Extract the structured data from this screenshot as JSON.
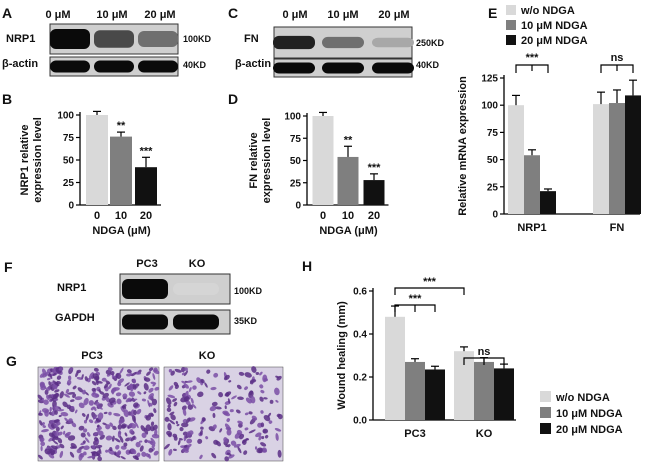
{
  "panels": {
    "A": {
      "letter": "A",
      "conditions": [
        "0 μM",
        "10 μM",
        "20 μM"
      ],
      "rows": [
        {
          "label": "NRP1",
          "size": "100KD",
          "levels": [
            1.0,
            0.72,
            0.55
          ]
        },
        {
          "label": "β-actin",
          "size": "40KD",
          "levels": [
            1.0,
            1.0,
            1.0
          ]
        }
      ]
    },
    "C": {
      "letter": "C",
      "conditions": [
        "0 μM",
        "10 μM",
        "20 μM"
      ],
      "rows": [
        {
          "label": "FN",
          "size": "250KD",
          "levels": [
            0.9,
            0.55,
            0.3
          ]
        },
        {
          "label": "β-actin",
          "size": "40KD",
          "levels": [
            1.0,
            1.0,
            1.0
          ]
        }
      ]
    },
    "F": {
      "letter": "F",
      "conditions": [
        "PC3",
        "KO"
      ],
      "rows": [
        {
          "label": "NRP1",
          "size": "100KD",
          "levels": [
            1.0,
            0.1
          ]
        },
        {
          "label": "GAPDH",
          "size": "35KD",
          "levels": [
            1.0,
            1.0
          ]
        }
      ]
    },
    "G": {
      "letter": "G",
      "images": [
        "PC3",
        "KO"
      ],
      "cell_density": [
        0.9,
        0.45
      ]
    }
  },
  "chart_data": [
    {
      "id": "B",
      "letter": "B",
      "type": "bar",
      "categories": [
        "0",
        "10",
        "20"
      ],
      "values": [
        100,
        76,
        42
      ],
      "errors": [
        4,
        5,
        11
      ],
      "significance": [
        "",
        "**",
        "***"
      ],
      "colors": [
        "#d9d9d9",
        "#7f7f7f",
        "#111111"
      ],
      "xlabel": "NDGA (μM)",
      "ylabel_lines": [
        "NRP1 relative",
        "expression level"
      ],
      "ylim": [
        0,
        100
      ],
      "yticks": [
        0,
        25,
        50,
        75,
        100
      ]
    },
    {
      "id": "D",
      "letter": "D",
      "type": "bar",
      "categories": [
        "0",
        "10",
        "20"
      ],
      "values": [
        100,
        54,
        28
      ],
      "errors": [
        4,
        12,
        7
      ],
      "significance": [
        "",
        "**",
        "***"
      ],
      "colors": [
        "#d9d9d9",
        "#7f7f7f",
        "#111111"
      ],
      "xlabel": "NDGA (μM)",
      "ylabel_lines": [
        "FN relative",
        "expression level"
      ],
      "ylim": [
        0,
        100
      ],
      "yticks": [
        0,
        25,
        50,
        75,
        100
      ]
    },
    {
      "id": "E",
      "letter": "E",
      "type": "bar",
      "categories": [
        "NRP1",
        "FN"
      ],
      "series": [
        {
          "name": "w/o    NDGA",
          "values": [
            100,
            101
          ],
          "errors": [
            9,
            11
          ]
        },
        {
          "name": "10 μM NDGA",
          "values": [
            54,
            102
          ],
          "errors": [
            5,
            12
          ]
        },
        {
          "name": "20 μM NDGA",
          "values": [
            21,
            109
          ],
          "errors": [
            2,
            14
          ]
        }
      ],
      "colors": [
        "#d9d9d9",
        "#7f7f7f",
        "#111111"
      ],
      "ylabel": "Relative mRNA expression",
      "ylim": [
        0,
        125
      ],
      "yticks": [
        0,
        25,
        50,
        75,
        100,
        125
      ],
      "brackets": [
        "***",
        "ns"
      ],
      "legend": "top"
    },
    {
      "id": "H",
      "letter": "H",
      "type": "bar",
      "categories": [
        "PC3",
        "KO"
      ],
      "series": [
        {
          "name": "w/o     NDGA",
          "values": [
            0.48,
            0.32
          ],
          "errors": [
            0.05,
            0.02
          ]
        },
        {
          "name": "10 μM NDGA",
          "values": [
            0.27,
            0.27
          ],
          "errors": [
            0.015,
            0.02
          ]
        },
        {
          "name": "20 μM NDGA",
          "values": [
            0.235,
            0.24
          ],
          "errors": [
            0.015,
            0.02
          ]
        }
      ],
      "colors": [
        "#d9d9d9",
        "#7f7f7f",
        "#111111"
      ],
      "ylabel": "Wound healing (mm)",
      "ylim": [
        0,
        0.6
      ],
      "yticks": [
        0.0,
        0.2,
        0.4,
        0.6
      ],
      "ytick_labels": [
        "0.0",
        "0.2",
        "0.4",
        "0.6"
      ],
      "brackets": [
        "***",
        "***",
        "ns"
      ],
      "legend": "right"
    }
  ]
}
